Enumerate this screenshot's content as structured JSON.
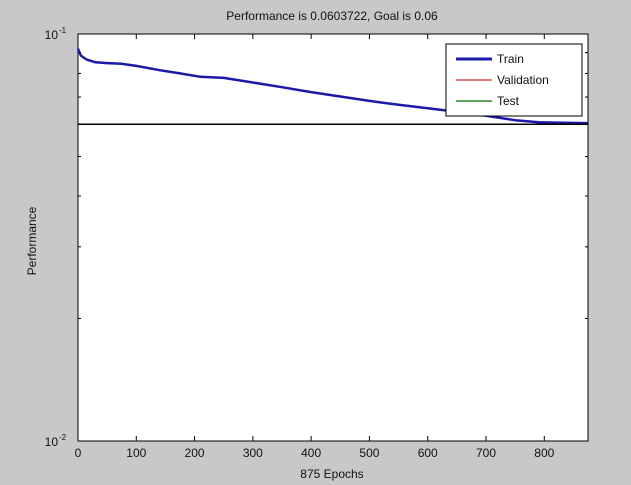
{
  "colors": {
    "figure_background": "#c8c8c8",
    "axes_background": "#ffffff",
    "train": "#1a1aa8",
    "validation": "#e05050",
    "test": "#2a8a2a",
    "goal": "#000000"
  },
  "chart_data": {
    "type": "line",
    "title": "Performance is 0.0603722, Goal is 0.06",
    "xlabel": "875 Epochs",
    "ylabel": "Performance",
    "xlim": [
      0,
      875
    ],
    "ylim": [
      0.01,
      0.1
    ],
    "yscale": "log",
    "grid": false,
    "legend_position": "top-right",
    "x_ticks": [
      0,
      100,
      200,
      300,
      400,
      500,
      600,
      700,
      800
    ],
    "y_ticks": [
      {
        "value": 0.1,
        "base": "10",
        "exponent": "-1"
      },
      {
        "value": 0.01,
        "base": "10",
        "exponent": "-2"
      }
    ],
    "series": [
      {
        "name": "Train",
        "color": "#1a1aa8",
        "x": [
          0,
          5,
          15,
          30,
          50,
          75,
          100,
          140,
          175,
          210,
          250,
          300,
          350,
          400,
          450,
          500,
          550,
          600,
          650,
          700,
          750,
          790,
          830,
          875
        ],
        "y": [
          0.092,
          0.0885,
          0.0865,
          0.0852,
          0.0848,
          0.0845,
          0.0835,
          0.0815,
          0.08,
          0.0785,
          0.078,
          0.076,
          0.074,
          0.072,
          0.0702,
          0.0685,
          0.067,
          0.0657,
          0.0644,
          0.063,
          0.0614,
          0.0607,
          0.0605,
          0.0604
        ]
      },
      {
        "name": "Validation",
        "color": "#e05050",
        "x": [],
        "y": []
      },
      {
        "name": "Test",
        "color": "#2a8a2a",
        "x": [],
        "y": []
      },
      {
        "color": "#000000",
        "x": [
          0,
          875
        ],
        "y": [
          0.06,
          0.06
        ]
      }
    ]
  }
}
